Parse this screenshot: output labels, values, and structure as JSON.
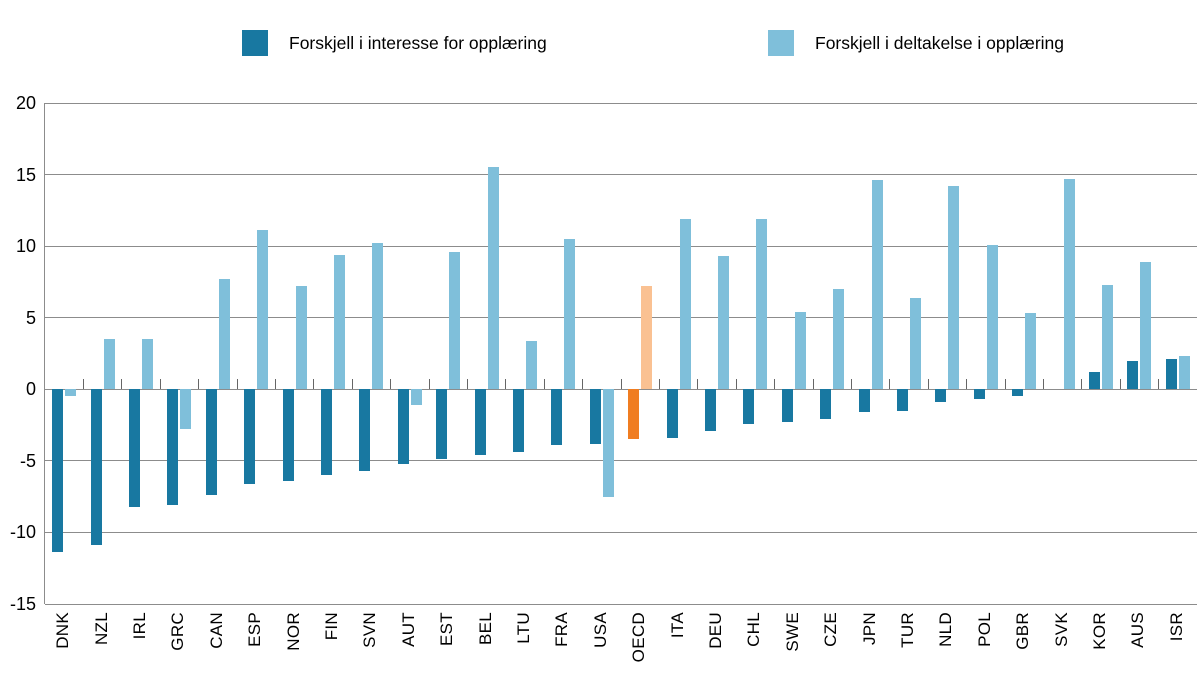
{
  "chart_data": {
    "type": "bar",
    "orientation": "vertical",
    "title": "",
    "xlabel": "",
    "ylabel": "",
    "ylim": [
      -15,
      20
    ],
    "yticks": [
      20,
      15,
      10,
      5,
      0,
      -5,
      -10,
      -15
    ],
    "grid": "horizontal",
    "legend_position": "top",
    "axis_color": "#8C8C8C",
    "background": "#FFFFFF",
    "highlight_category": "OECD",
    "categories": [
      "DNK",
      "NZL",
      "IRL",
      "GRC",
      "CAN",
      "ESP",
      "NOR",
      "FIN",
      "SVN",
      "AUT",
      "EST",
      "BEL",
      "LTU",
      "FRA",
      "USA",
      "OECD",
      "ITA",
      "DEU",
      "CHL",
      "SWE",
      "CZE",
      "JPN",
      "TUR",
      "NLD",
      "POL",
      "GBR",
      "SVK",
      "KOR",
      "AUS",
      "ISR"
    ],
    "series": [
      {
        "name": "Forskjell i interesse for opplæring",
        "color": "#1878A1",
        "highlight_color": "#F07D21",
        "values": [
          -11.4,
          -10.9,
          -8.2,
          -8.1,
          -7.4,
          -6.6,
          -6.4,
          -6.0,
          -5.7,
          -5.2,
          -4.9,
          -4.6,
          -4.4,
          -3.9,
          -3.8,
          -3.5,
          -3.4,
          -2.9,
          -2.4,
          -2.3,
          -2.1,
          -1.6,
          -1.5,
          -0.9,
          -0.7,
          -0.5,
          0,
          1.2,
          2.0,
          2.1
        ]
      },
      {
        "name": "Forskjell i deltakelse i opplæring",
        "color": "#7FBFDA",
        "highlight_color": "#FAC192",
        "values": [
          -0.5,
          3.5,
          3.5,
          -2.8,
          7.7,
          11.1,
          7.2,
          9.4,
          10.2,
          -1.1,
          9.6,
          15.5,
          3.4,
          10.5,
          -7.5,
          7.2,
          11.9,
          9.3,
          11.9,
          5.4,
          7.0,
          14.6,
          6.4,
          14.2,
          10.1,
          5.3,
          14.7,
          7.3,
          8.9,
          2.3
        ]
      }
    ]
  }
}
